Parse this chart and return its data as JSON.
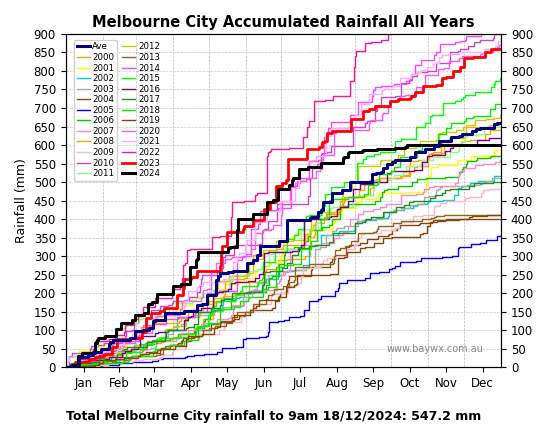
{
  "title": "Melbourne City Accumulated Rainfall All Years",
  "xlabel": "Total Melbourne City rainfall to 9am 18/12/2024: 547.2 mm",
  "ylabel": "Rainfall (mm)",
  "ylim": [
    0,
    900
  ],
  "yticks": [
    0,
    50,
    100,
    150,
    200,
    250,
    300,
    350,
    400,
    450,
    500,
    550,
    600,
    650,
    700,
    750,
    800,
    850,
    900
  ],
  "months": [
    "Jan",
    "Feb",
    "Mar",
    "Apr",
    "May",
    "Jun",
    "Jul",
    "Aug",
    "Sep",
    "Oct",
    "Nov",
    "Dec"
  ],
  "watermark": "www.baywx.com.au",
  "years_data": {
    "Ave": {
      "color": "#000080",
      "lw": 2.2,
      "zo": 20,
      "monthly": [
        48,
        49,
        49,
        50,
        64,
        80,
        80,
        80,
        50,
        40,
        40,
        30
      ]
    },
    "2000": {
      "color": "#FFA500",
      "lw": 1.0,
      "zo": 4,
      "monthly": [
        20,
        35,
        25,
        50,
        70,
        90,
        100,
        70,
        50,
        50,
        50,
        30
      ]
    },
    "2001": {
      "color": "#FFFF00",
      "lw": 1.0,
      "zo": 4,
      "monthly": [
        55,
        25,
        50,
        60,
        50,
        60,
        70,
        60,
        40,
        40,
        50,
        30
      ]
    },
    "2002": {
      "color": "#00CCCC",
      "lw": 1.0,
      "zo": 4,
      "monthly": [
        30,
        30,
        40,
        50,
        50,
        60,
        70,
        60,
        30,
        30,
        40,
        30
      ]
    },
    "2003": {
      "color": "#AAAAAA",
      "lw": 1.0,
      "zo": 4,
      "monthly": [
        25,
        25,
        40,
        50,
        50,
        60,
        70,
        60,
        40,
        40,
        30,
        20
      ]
    },
    "2004": {
      "color": "#8B4513",
      "lw": 1.0,
      "zo": 4,
      "monthly": [
        10,
        20,
        30,
        40,
        50,
        50,
        70,
        60,
        30,
        30,
        10,
        0
      ]
    },
    "2005": {
      "color": "#0000FF",
      "lw": 1.0,
      "zo": 4,
      "monthly": [
        5,
        10,
        10,
        10,
        40,
        50,
        60,
        50,
        30,
        30,
        30,
        30
      ]
    },
    "2006": {
      "color": "#00CC00",
      "lw": 1.0,
      "zo": 4,
      "monthly": [
        15,
        25,
        40,
        50,
        70,
        80,
        90,
        70,
        40,
        30,
        30,
        30
      ]
    },
    "2007": {
      "color": "#FF88CC",
      "lw": 1.0,
      "zo": 4,
      "monthly": [
        10,
        20,
        40,
        50,
        60,
        70,
        80,
        70,
        40,
        40,
        50,
        30
      ]
    },
    "2008": {
      "color": "#FFA500",
      "lw": 1.0,
      "zo": 4,
      "monthly": [
        40,
        40,
        40,
        50,
        70,
        80,
        80,
        60,
        50,
        60,
        50,
        40
      ]
    },
    "2009": {
      "color": "#FFB6C1",
      "lw": 1.0,
      "zo": 4,
      "monthly": [
        5,
        15,
        30,
        40,
        50,
        60,
        70,
        60,
        40,
        40,
        40,
        30
      ]
    },
    "2010": {
      "color": "#CC44CC",
      "lw": 1.0,
      "zo": 4,
      "monthly": [
        60,
        60,
        60,
        70,
        80,
        110,
        110,
        100,
        80,
        70,
        60,
        40
      ]
    },
    "2011": {
      "color": "#88FF88",
      "lw": 1.0,
      "zo": 4,
      "monthly": [
        70,
        50,
        40,
        40,
        50,
        60,
        80,
        70,
        50,
        50,
        50,
        40
      ]
    },
    "2012": {
      "color": "#CCCC00",
      "lw": 1.0,
      "zo": 4,
      "monthly": [
        20,
        40,
        50,
        60,
        80,
        90,
        80,
        80,
        60,
        50,
        40,
        30
      ]
    },
    "2013": {
      "color": "#8B6914",
      "lw": 1.0,
      "zo": 4,
      "monthly": [
        10,
        20,
        30,
        40,
        50,
        60,
        70,
        60,
        40,
        20,
        10,
        0
      ]
    },
    "2014": {
      "color": "#FF44FF",
      "lw": 1.0,
      "zo": 4,
      "monthly": [
        30,
        40,
        60,
        70,
        100,
        130,
        130,
        120,
        80,
        70,
        50,
        40
      ]
    },
    "2015": {
      "color": "#00FF00",
      "lw": 1.0,
      "zo": 4,
      "monthly": [
        15,
        25,
        40,
        60,
        80,
        90,
        100,
        90,
        80,
        80,
        70,
        50
      ]
    },
    "2016": {
      "color": "#800080",
      "lw": 1.0,
      "zo": 4,
      "monthly": [
        20,
        30,
        50,
        60,
        70,
        80,
        90,
        80,
        50,
        40,
        30,
        20
      ]
    },
    "2017": {
      "color": "#228B22",
      "lw": 1.0,
      "zo": 4,
      "monthly": [
        25,
        30,
        45,
        50,
        50,
        60,
        70,
        60,
        30,
        30,
        30,
        20
      ]
    },
    "2018": {
      "color": "#00EE00",
      "lw": 1.0,
      "zo": 4,
      "monthly": [
        10,
        20,
        30,
        50,
        70,
        90,
        100,
        90,
        70,
        70,
        60,
        50
      ]
    },
    "2019": {
      "color": "#8B4500",
      "lw": 1.0,
      "zo": 4,
      "monthly": [
        10,
        15,
        25,
        40,
        50,
        50,
        60,
        60,
        40,
        30,
        20,
        10
      ]
    },
    "2020": {
      "color": "#FF55FF",
      "lw": 1.0,
      "zo": 4,
      "monthly": [
        35,
        45,
        60,
        70,
        90,
        110,
        120,
        110,
        80,
        70,
        50,
        30
      ]
    },
    "2021": {
      "color": "#FFAAFF",
      "lw": 1.0,
      "zo": 4,
      "monthly": [
        40,
        50,
        60,
        80,
        100,
        120,
        120,
        110,
        70,
        60,
        40,
        30
      ]
    },
    "2022": {
      "color": "#FF1493",
      "lw": 1.0,
      "zo": 4,
      "monthly": [
        70,
        60,
        80,
        110,
        130,
        140,
        130,
        120,
        60,
        40,
        20,
        10
      ]
    },
    "2023": {
      "color": "#FF0000",
      "lw": 2.0,
      "zo": 15,
      "monthly": [
        30,
        50,
        80,
        100,
        120,
        110,
        100,
        80,
        50,
        40,
        50,
        50
      ]
    },
    "2024": {
      "color": "#000000",
      "lw": 2.2,
      "zo": 18,
      "monthly": [
        80,
        60,
        80,
        90,
        90,
        80,
        60,
        40,
        10,
        10,
        0,
        0
      ]
    }
  },
  "legend_col1": [
    "Ave",
    "2000",
    "2001",
    "2002",
    "2003",
    "2004",
    "2005",
    "2006",
    "2007",
    "2008",
    "2009",
    "2010",
    "2011"
  ],
  "legend_col2": [
    "2012",
    "2013",
    "2014",
    "2015",
    "2016",
    "2017",
    "2018",
    "2019",
    "2020",
    "2021",
    "2022",
    "2023",
    "2024"
  ],
  "month_days": [
    31,
    28,
    31,
    30,
    31,
    30,
    31,
    31,
    30,
    31,
    30,
    31
  ]
}
